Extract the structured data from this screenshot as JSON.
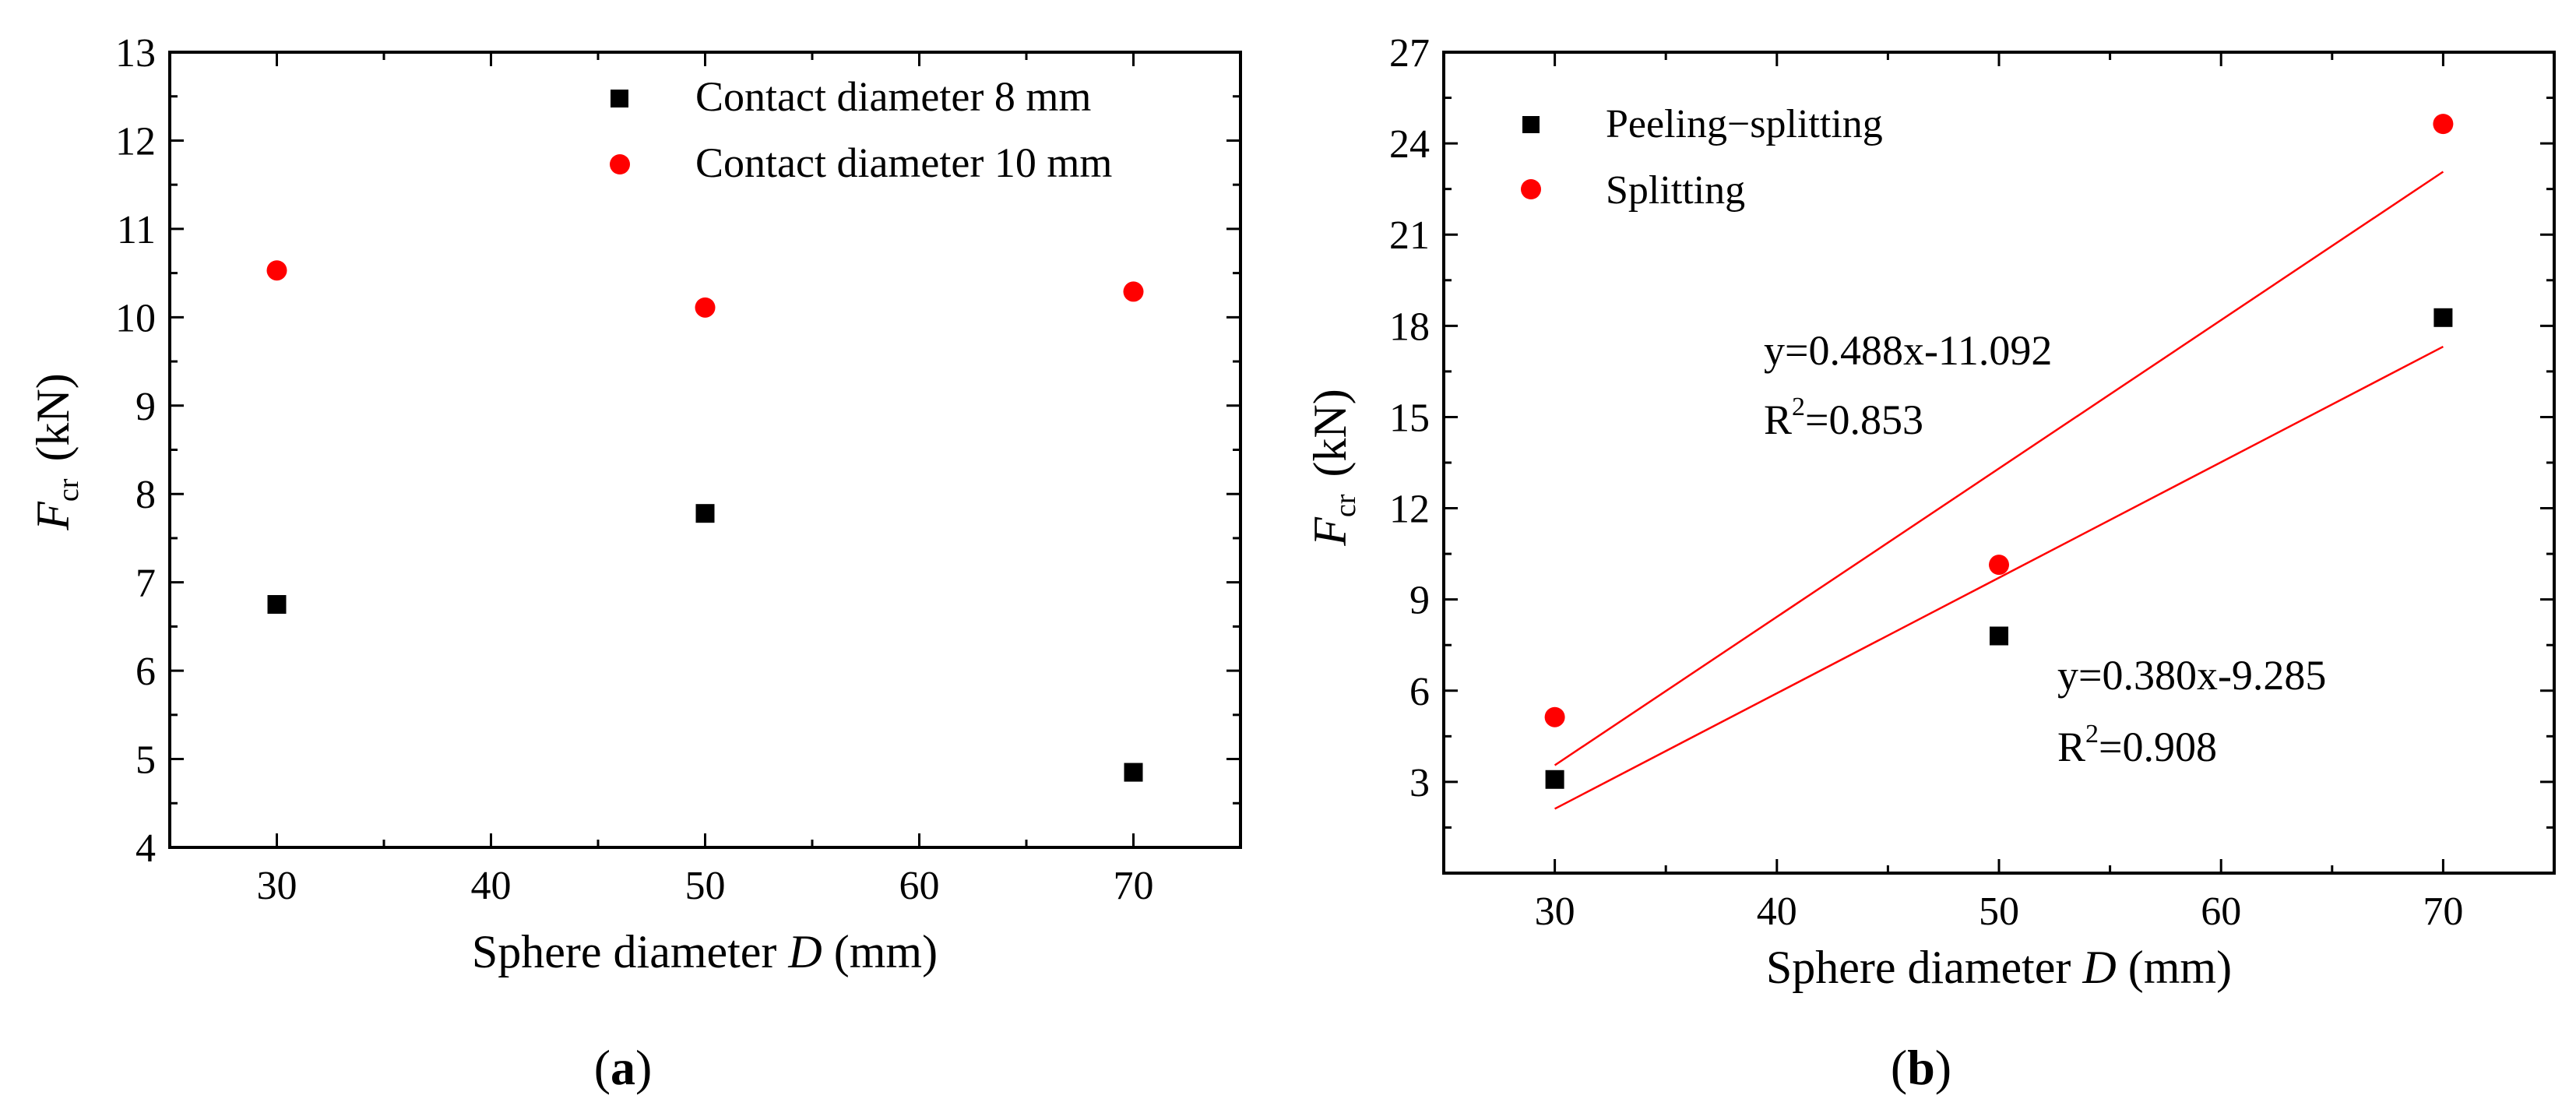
{
  "figure": {
    "panel_a_label": "a",
    "panel_b_label": "b"
  },
  "chart_data": [
    {
      "type": "scatter",
      "panel": "a",
      "title": "",
      "xlabel_prefix": "Sphere diameter ",
      "xlabel_var": "D",
      "xlabel_suffix": " (mm)",
      "ylabel_var": "F",
      "ylabel_sub": "cr",
      "ylabel_unit": "(kN)",
      "xlim": [
        25,
        75
      ],
      "ylim": [
        4,
        13
      ],
      "xticks": [
        30,
        40,
        50,
        60,
        70
      ],
      "yticks": [
        4,
        5,
        6,
        7,
        8,
        9,
        10,
        11,
        12,
        13
      ],
      "legend_position": "top-right",
      "series": [
        {
          "name": "Contact diameter 8 mm",
          "marker": "square",
          "color": "#000000",
          "x": [
            30,
            50,
            70
          ],
          "y": [
            6.75,
            7.78,
            4.85
          ]
        },
        {
          "name": "Contact diameter 10 mm",
          "marker": "circle",
          "color": "#ff0000",
          "x": [
            30,
            50,
            70
          ],
          "y": [
            10.53,
            10.11,
            10.29
          ]
        }
      ],
      "fits": [],
      "annotations": []
    },
    {
      "type": "scatter",
      "panel": "b",
      "title": "",
      "xlabel_prefix": "Sphere diameter ",
      "xlabel_var": "D",
      "xlabel_suffix": " (mm)",
      "ylabel_var": "F",
      "ylabel_sub": "cr",
      "ylabel_unit": "(kN)",
      "xlim": [
        25,
        75
      ],
      "ylim": [
        0,
        27
      ],
      "xticks": [
        30,
        40,
        50,
        60,
        70
      ],
      "yticks": [
        3,
        6,
        9,
        12,
        15,
        18,
        21,
        24,
        27
      ],
      "legend_position": "top-left",
      "series": [
        {
          "name": "Peeling−splitting",
          "marker": "square",
          "color": "#000000",
          "x": [
            30,
            50,
            70
          ],
          "y": [
            3.08,
            7.8,
            18.27
          ]
        },
        {
          "name": "Splitting",
          "marker": "circle",
          "color": "#ff0000",
          "x": [
            30,
            50,
            70
          ],
          "y": [
            5.13,
            10.14,
            24.64
          ]
        }
      ],
      "fits": [
        {
          "slope": 0.488,
          "intercept": -11.092,
          "color": "#ff0000",
          "x_range": [
            30,
            70
          ]
        },
        {
          "slope": 0.38,
          "intercept": -9.285,
          "color": "#ff0000",
          "x_range": [
            30,
            70
          ]
        }
      ],
      "annotations": [
        {
          "line1": "y=0.488x-11.092",
          "r2_label": "R",
          "r2_value": "=0.853"
        },
        {
          "line1": "y=0.380x-9.285",
          "r2_label": "R",
          "r2_value": "=0.908"
        }
      ]
    }
  ]
}
